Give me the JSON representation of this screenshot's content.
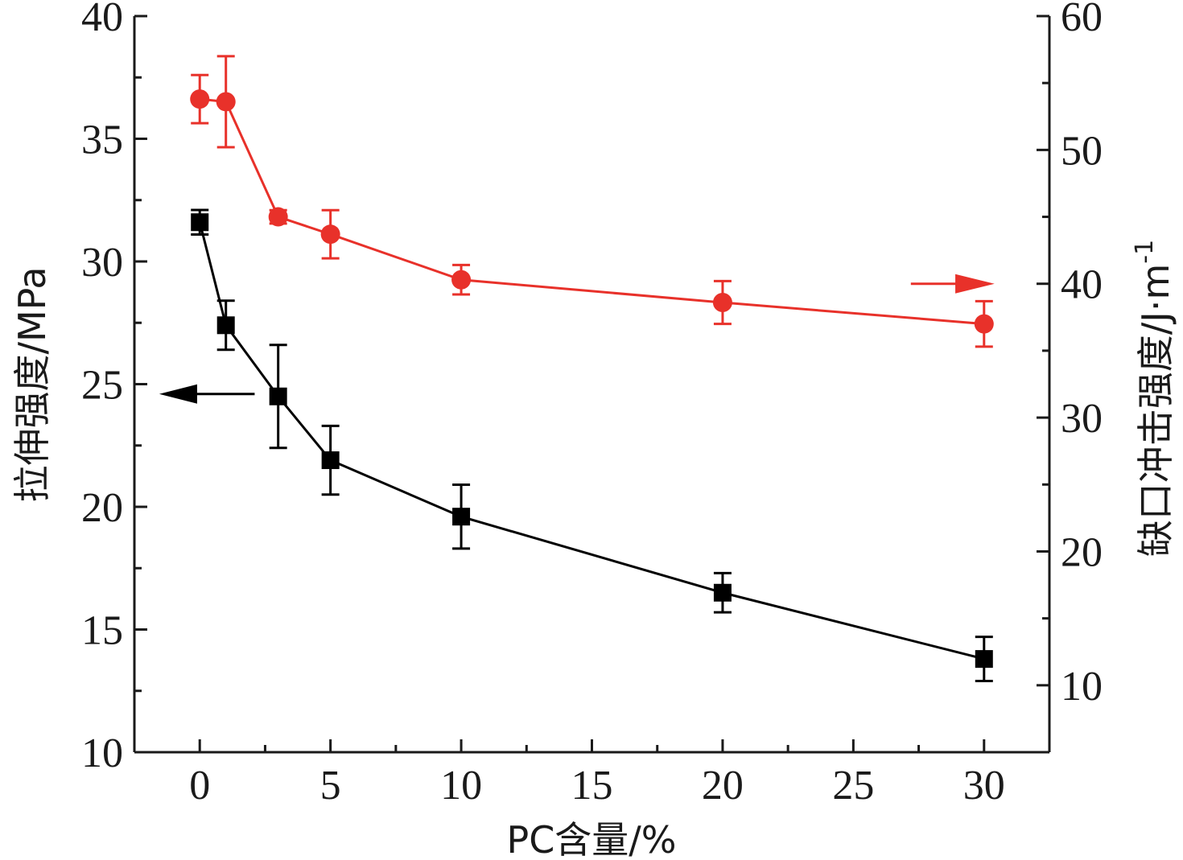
{
  "chart_data": {
    "type": "line",
    "xlabel": "PC含量/%",
    "ylabel_left": "拉伸强度/MPa",
    "ylabel_right": "缺口冲击强度/J·m",
    "ylabel_right_superscript": "-1",
    "xlim": [
      -2.5,
      32.5
    ],
    "ylim_left": [
      10,
      40
    ],
    "ylim_right": [
      5,
      60
    ],
    "x_ticks": [
      "0",
      "5",
      "10",
      "15",
      "20",
      "25",
      "30"
    ],
    "y_left_ticks": [
      "10",
      "15",
      "20",
      "25",
      "30",
      "35",
      "40"
    ],
    "y_right_ticks": [
      "10",
      "20",
      "30",
      "40",
      "50",
      "60"
    ],
    "grid": false,
    "series": [
      {
        "axis": "left",
        "color": "#000000",
        "marker": "square",
        "x": [
          0,
          1,
          3,
          5,
          10,
          20,
          30
        ],
        "y": [
          31.6,
          27.4,
          24.5,
          21.9,
          19.6,
          16.5,
          13.8
        ],
        "error": [
          0.5,
          1.0,
          2.1,
          1.4,
          1.3,
          0.8,
          0.9
        ]
      },
      {
        "axis": "right",
        "color": "#e8312a",
        "marker": "circle",
        "x": [
          0,
          1,
          3,
          5,
          10,
          20,
          30
        ],
        "y": [
          53.8,
          53.6,
          45.0,
          43.7,
          40.3,
          38.6,
          37.0
        ],
        "error": [
          1.8,
          3.4,
          0.5,
          1.8,
          1.1,
          1.6,
          1.7
        ]
      }
    ],
    "annotations": [
      {
        "type": "arrow",
        "direction": "left",
        "color": "#000000",
        "points_to": "left axis"
      },
      {
        "type": "arrow",
        "direction": "right",
        "color": "#e8312a",
        "points_to": "right axis"
      }
    ]
  }
}
